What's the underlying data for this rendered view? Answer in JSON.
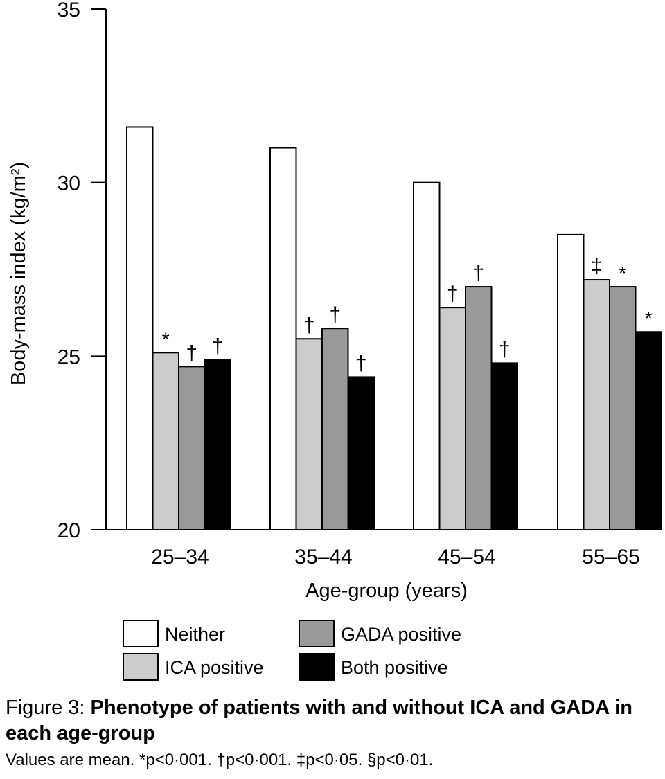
{
  "chart_data": {
    "type": "bar",
    "categories": [
      "25–34",
      "35–44",
      "45–54",
      "55–65"
    ],
    "series": [
      {
        "name": "Neither",
        "color": "#ffffff",
        "values": [
          31.6,
          31.0,
          30.0,
          28.5
        ],
        "marks": [
          "",
          "",
          "",
          ""
        ]
      },
      {
        "name": "ICA positive",
        "color": "#cccccc",
        "values": [
          25.1,
          25.5,
          26.4,
          27.2
        ],
        "marks": [
          "*",
          "†",
          "†",
          "‡"
        ]
      },
      {
        "name": "GADA positive",
        "color": "#999999",
        "values": [
          24.7,
          25.8,
          27.0,
          27.0
        ],
        "marks": [
          "†",
          "†",
          "†",
          "*"
        ]
      },
      {
        "name": "Both positive",
        "color": "#000000",
        "values": [
          24.9,
          24.4,
          24.8,
          25.7
        ],
        "marks": [
          "†",
          "†",
          "†",
          "*"
        ]
      }
    ],
    "ylim": [
      20,
      35
    ],
    "yticks": [
      20,
      25,
      30,
      35
    ],
    "ylabel": "Body-mass index (kg/m²)",
    "xlabel": "Age-group (years)",
    "title": "",
    "legend_position": "bottom",
    "grid": false
  },
  "caption": {
    "figure_label": "Figure 3:",
    "title": "Phenotype of patients with and without ICA and GADA in each age-group",
    "note": "Values are mean. *p<0·001. †p<0·001. ‡p<0·05. §p<0·01."
  }
}
